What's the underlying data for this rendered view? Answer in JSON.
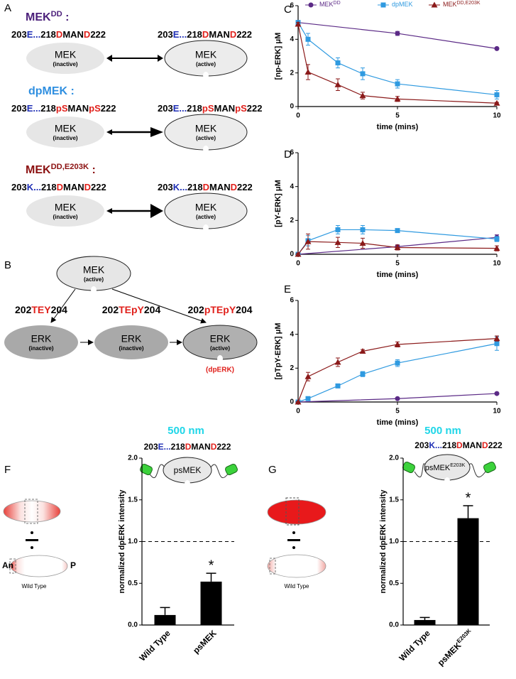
{
  "panel_labels": [
    "A",
    "B",
    "C",
    "D",
    "E",
    "F",
    "G"
  ],
  "diagram": {
    "constructs": [
      {
        "name": "MEK",
        "name_sup": "DD",
        "suffix": " :",
        "color": "#4b1f7a",
        "sequence": [
          {
            "text": "203",
            "color": "#000000"
          },
          {
            "text": "E...",
            "color": "#1f2fb5"
          },
          {
            "text": "218",
            "color": "#000000"
          },
          {
            "text": "D",
            "color": "#e0201b"
          },
          {
            "text": "MAN",
            "color": "#000000"
          },
          {
            "text": "D",
            "color": "#e0201b"
          },
          {
            "text": "222",
            "color": "#000000"
          }
        ],
        "states": [
          {
            "label": "MEK",
            "sub": "(inactive)"
          },
          {
            "label": "MEK",
            "sub": "(active)"
          }
        ]
      },
      {
        "name": "dpMEK",
        "suffix": " :",
        "color": "#2f8fe0",
        "sequence": [
          {
            "text": "203",
            "color": "#000000"
          },
          {
            "text": "E...",
            "color": "#1f2fb5"
          },
          {
            "text": "218",
            "color": "#000000"
          },
          {
            "text": "pS",
            "color": "#e0201b"
          },
          {
            "text": "MAN",
            "color": "#000000"
          },
          {
            "text": "pS",
            "color": "#e0201b"
          },
          {
            "text": "222",
            "color": "#000000"
          }
        ],
        "states": [
          {
            "label": "MEK",
            "sub": "(inactive)"
          },
          {
            "label": "MEK",
            "sub": "(active)"
          }
        ]
      },
      {
        "name": "MEK",
        "name_sup": "DD,E203K",
        "suffix": " :",
        "color": "#8b1010",
        "sequence": [
          {
            "text": "203",
            "color": "#000000"
          },
          {
            "text": "K...",
            "color": "#1f2fb5"
          },
          {
            "text": "218",
            "color": "#000000"
          },
          {
            "text": "D",
            "color": "#e0201b"
          },
          {
            "text": "MAN",
            "color": "#000000"
          },
          {
            "text": "D",
            "color": "#e0201b"
          },
          {
            "text": "222",
            "color": "#000000"
          }
        ],
        "states": [
          {
            "label": "MEK",
            "sub": "(inactive)"
          },
          {
            "label": "MEK",
            "sub": "(active)"
          }
        ]
      }
    ],
    "pathway": {
      "mek": {
        "label": "MEK",
        "sub": "(active)"
      },
      "erk": [
        {
          "sequence": [
            {
              "text": "202",
              "color": "#000000"
            },
            {
              "text": "TEY",
              "color": "#e0201b"
            },
            {
              "text": "204",
              "color": "#000000"
            }
          ],
          "label": "ERK",
          "sub": "(inactive)"
        },
        {
          "sequence": [
            {
              "text": "202",
              "color": "#000000"
            },
            {
              "text": "TEpY",
              "color": "#e0201b"
            },
            {
              "text": "204",
              "color": "#000000"
            }
          ],
          "label": "ERK",
          "sub": "(inactive)"
        },
        {
          "sequence": [
            {
              "text": "202",
              "color": "#000000"
            },
            {
              "text": "pTEpY",
              "color": "#e0201b"
            },
            {
              "text": "204",
              "color": "#000000"
            }
          ],
          "label": "ERK",
          "sub": "(active)",
          "note": "(dpERK)"
        }
      ]
    }
  },
  "figure_f": {
    "scale": "500 nm",
    "sequence": [
      {
        "text": "203",
        "color": "#000000"
      },
      {
        "text": "E...",
        "color": "#1f2fb5"
      },
      {
        "text": "218",
        "color": "#000000"
      },
      {
        "text": "D",
        "color": "#e0201b"
      },
      {
        "text": "MAN",
        "color": "#000000"
      },
      {
        "text": "D",
        "color": "#e0201b"
      },
      {
        "text": "222",
        "color": "#000000"
      }
    ],
    "construct": "psMEK",
    "embryo_labels": {
      "anterior": "An",
      "posterior": "P",
      "genotype": "Wild Type"
    }
  },
  "figure_g": {
    "scale": "500 nm",
    "sequence": [
      {
        "text": "203",
        "color": "#000000"
      },
      {
        "text": "K...",
        "color": "#1f2fb5"
      },
      {
        "text": "218",
        "color": "#000000"
      },
      {
        "text": "D",
        "color": "#e0201b"
      },
      {
        "text": "MAN",
        "color": "#000000"
      },
      {
        "text": "D",
        "color": "#e0201b"
      },
      {
        "text": "222",
        "color": "#000000"
      }
    ],
    "construct": "psMEK",
    "construct_sup": "E203K",
    "embryo_labels": {
      "genotype": "Wild Type"
    }
  },
  "chart_data": [
    {
      "type": "line",
      "ylabel": "[np-ERK] μM",
      "xlabel": "time (mins)",
      "xlim": [
        0,
        10
      ],
      "ylim": [
        0,
        6
      ],
      "xticks": [
        0,
        5,
        10
      ],
      "yticks": [
        0,
        2,
        4,
        6
      ],
      "legend": "top",
      "series": [
        {
          "name": "MEK",
          "name_sup": "DD",
          "color": "#5b2a86",
          "marker": "circle",
          "x": [
            0,
            5,
            10
          ],
          "values": [
            5,
            4.35,
            3.45
          ],
          "errors": [
            0.05,
            0.12,
            0.05
          ]
        },
        {
          "name": "dpMEK",
          "color": "#2f9ae0",
          "marker": "square",
          "x": [
            0,
            0.5,
            2,
            3.25,
            5,
            10
          ],
          "values": [
            5,
            4.0,
            2.6,
            1.95,
            1.35,
            0.7
          ],
          "errors": [
            0.1,
            0.35,
            0.3,
            0.35,
            0.25,
            0.25
          ]
        },
        {
          "name": "MEK",
          "name_sup": "DD,E203K",
          "color": "#8b1a1a",
          "marker": "triangle",
          "x": [
            0,
            0.5,
            2,
            3.25,
            5,
            10
          ],
          "values": [
            4.9,
            2.05,
            1.3,
            0.65,
            0.45,
            0.2
          ],
          "errors": [
            0.1,
            0.45,
            0.35,
            0.2,
            0.15,
            0.05
          ]
        }
      ]
    },
    {
      "type": "line",
      "ylabel": "[pY-ERK] μM",
      "xlabel": "time (mins)",
      "xlim": [
        0,
        10
      ],
      "ylim": [
        0,
        6
      ],
      "xticks": [
        0,
        5,
        10
      ],
      "yticks": [
        0,
        2,
        4,
        6
      ],
      "series": [
        {
          "color": "#5b2a86",
          "marker": "circle",
          "x": [
            0,
            5,
            10
          ],
          "values": [
            0,
            0.45,
            1.0
          ],
          "errors": [
            0.02,
            0.1,
            0.15
          ]
        },
        {
          "color": "#2f9ae0",
          "marker": "square",
          "x": [
            0,
            0.5,
            2,
            3.25,
            5,
            10
          ],
          "values": [
            0,
            0.8,
            1.45,
            1.45,
            1.4,
            0.9
          ],
          "errors": [
            0.05,
            0.3,
            0.25,
            0.25,
            0.1,
            0.15
          ]
        },
        {
          "color": "#8b1a1a",
          "marker": "triangle",
          "x": [
            0,
            0.5,
            2,
            3.25,
            5,
            10
          ],
          "values": [
            0,
            0.75,
            0.7,
            0.65,
            0.4,
            0.35
          ],
          "errors": [
            0.05,
            0.45,
            0.3,
            0.3,
            0.15,
            0.15
          ]
        }
      ]
    },
    {
      "type": "line",
      "ylabel": "[pTpY-ERK] μM",
      "xlabel": "time (mins)",
      "xlim": [
        0,
        10
      ],
      "ylim": [
        0,
        6
      ],
      "xticks": [
        0,
        5,
        10
      ],
      "yticks": [
        0,
        2,
        4,
        6
      ],
      "series": [
        {
          "color": "#5b2a86",
          "marker": "circle",
          "x": [
            0,
            5,
            10
          ],
          "values": [
            0,
            0.2,
            0.5
          ],
          "errors": [
            0.02,
            0.05,
            0.05
          ]
        },
        {
          "color": "#2f9ae0",
          "marker": "square",
          "x": [
            0,
            0.5,
            2,
            3.25,
            5,
            10
          ],
          "values": [
            0,
            0.2,
            0.95,
            1.65,
            2.3,
            3.45
          ],
          "errors": [
            0.02,
            0.05,
            0.1,
            0.15,
            0.2,
            0.4
          ]
        },
        {
          "color": "#8b1a1a",
          "marker": "triangle",
          "x": [
            0,
            0.5,
            2,
            3.25,
            5,
            10
          ],
          "values": [
            0,
            1.5,
            2.35,
            3.0,
            3.4,
            3.75
          ],
          "errors": [
            0.02,
            0.25,
            0.25,
            0.1,
            0.15,
            0.15
          ]
        }
      ]
    },
    {
      "type": "bar",
      "ylabel": "normalized dpERK intensity",
      "categories": [
        "Wild Type",
        "psMEK"
      ],
      "values": [
        0.12,
        0.52
      ],
      "errors": [
        0.09,
        0.1
      ],
      "color": "#000000",
      "ylim": [
        0,
        2
      ],
      "yticks": [
        {
          "value": 0,
          "label": "0.0"
        },
        0.5,
        {
          "value": 1,
          "label": "1.0"
        },
        1.5,
        {
          "value": 2,
          "label": "2.0"
        }
      ],
      "reference_line": 1,
      "annotations": [
        {
          "index": 1,
          "text": "*"
        }
      ]
    },
    {
      "type": "bar",
      "ylabel": "normalized dpERK intensity",
      "categories": [
        "Wild Type",
        "psMEK"
      ],
      "category_sups": [
        null,
        "E203K"
      ],
      "values": [
        0.06,
        1.28
      ],
      "errors": [
        0.03,
        0.15
      ],
      "color": "#000000",
      "ylim": [
        0,
        2
      ],
      "yticks": [
        {
          "value": 0,
          "label": "0.0"
        },
        0.5,
        {
          "value": 1,
          "label": "1.0"
        },
        1.5,
        {
          "value": 2,
          "label": "2.0"
        }
      ],
      "reference_line": 1,
      "annotations": [
        {
          "index": 1,
          "text": "*"
        }
      ]
    }
  ]
}
